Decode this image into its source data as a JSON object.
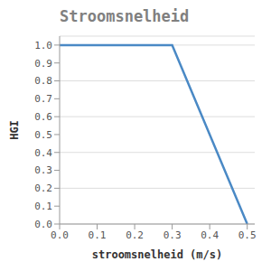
{
  "chart_data": {
    "type": "line",
    "title": "Stroomsnelheid",
    "x_label": "stroomsnelheid (m/s)",
    "y_label": "HGI",
    "x": [
      0,
      0.3,
      0.5
    ],
    "values": [
      1,
      1,
      0
    ],
    "color": "#4a89c5",
    "xlim": [
      0,
      0.52
    ],
    "xticks": [
      {
        "value": 0,
        "label": "0.0"
      },
      0.1,
      0.2,
      0.3,
      0.4,
      0.5
    ],
    "ylim": [
      0,
      1.05
    ],
    "yticks": [
      {
        "value": 0,
        "label": "0.0"
      },
      0.1,
      0.2,
      0.3,
      0.4,
      0.5,
      0.6,
      0.7,
      0.8,
      0.9,
      {
        "value": 1,
        "label": "1.0"
      }
    ],
    "grid": true
  }
}
